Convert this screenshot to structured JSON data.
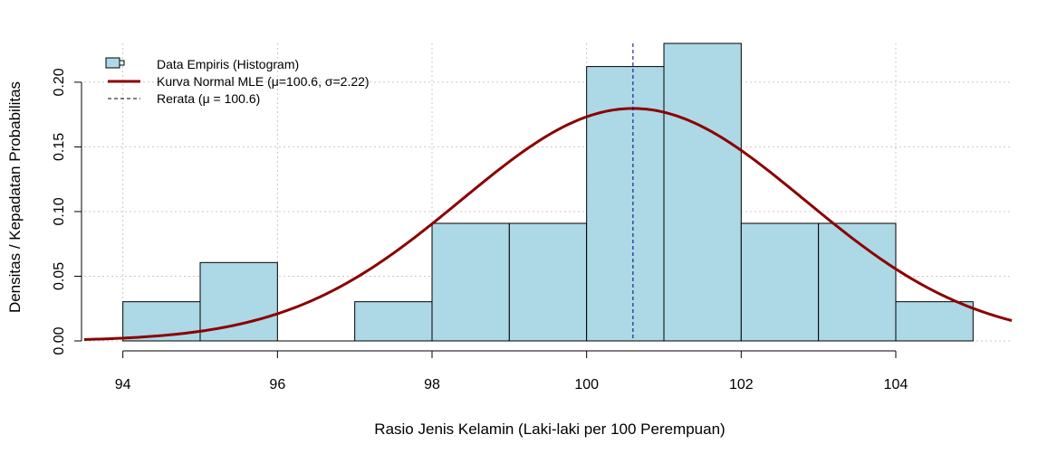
{
  "chart_data": {
    "type": "bar",
    "title": "",
    "xlabel": "Rasio Jenis Kelamin (Laki-laki per 100 Perempuan)",
    "ylabel": "Densitas / Kepadatan Probabilitas",
    "xlim": [
      93.5,
      105.5
    ],
    "ylim": [
      0,
      0.23
    ],
    "x_ticks": [
      "94",
      "96",
      "98",
      "100",
      "102",
      "104"
    ],
    "x_tick_values": [
      94,
      96,
      98,
      100,
      102,
      104
    ],
    "y_ticks": [
      "0.00",
      "0.05",
      "0.10",
      "0.15",
      "0.20"
    ],
    "y_tick_values": [
      0,
      0.05,
      0.1,
      0.15,
      0.2
    ],
    "grid": true,
    "histogram": {
      "name": "Data Empiris (Histogram)",
      "bins": [
        {
          "x0": 94,
          "x1": 95,
          "density": 0.0303
        },
        {
          "x0": 95,
          "x1": 96,
          "density": 0.0606
        },
        {
          "x0": 96,
          "x1": 97,
          "density": 0.0
        },
        {
          "x0": 97,
          "x1": 98,
          "density": 0.0303
        },
        {
          "x0": 98,
          "x1": 99,
          "density": 0.0909
        },
        {
          "x0": 99,
          "x1": 100,
          "density": 0.0909
        },
        {
          "x0": 100,
          "x1": 101,
          "density": 0.2121
        },
        {
          "x0": 101,
          "x1": 102,
          "density": 0.2424
        },
        {
          "x0": 102,
          "x1": 103,
          "density": 0.0909
        },
        {
          "x0": 103,
          "x1": 104,
          "density": 0.0909
        },
        {
          "x0": 104,
          "x1": 105,
          "density": 0.0303
        }
      ],
      "color": "#ADD8E6"
    },
    "normal_curve": {
      "name": "Kurva Normal MLE (μ=100.6, σ=2.22)",
      "mu": 100.6,
      "sigma": 2.22,
      "color": "#8B0000"
    },
    "mean_line": {
      "name": "Rerata (μ = 100.6)",
      "x": 100.6,
      "color": "#00008B"
    },
    "legend_position": "top-left"
  }
}
